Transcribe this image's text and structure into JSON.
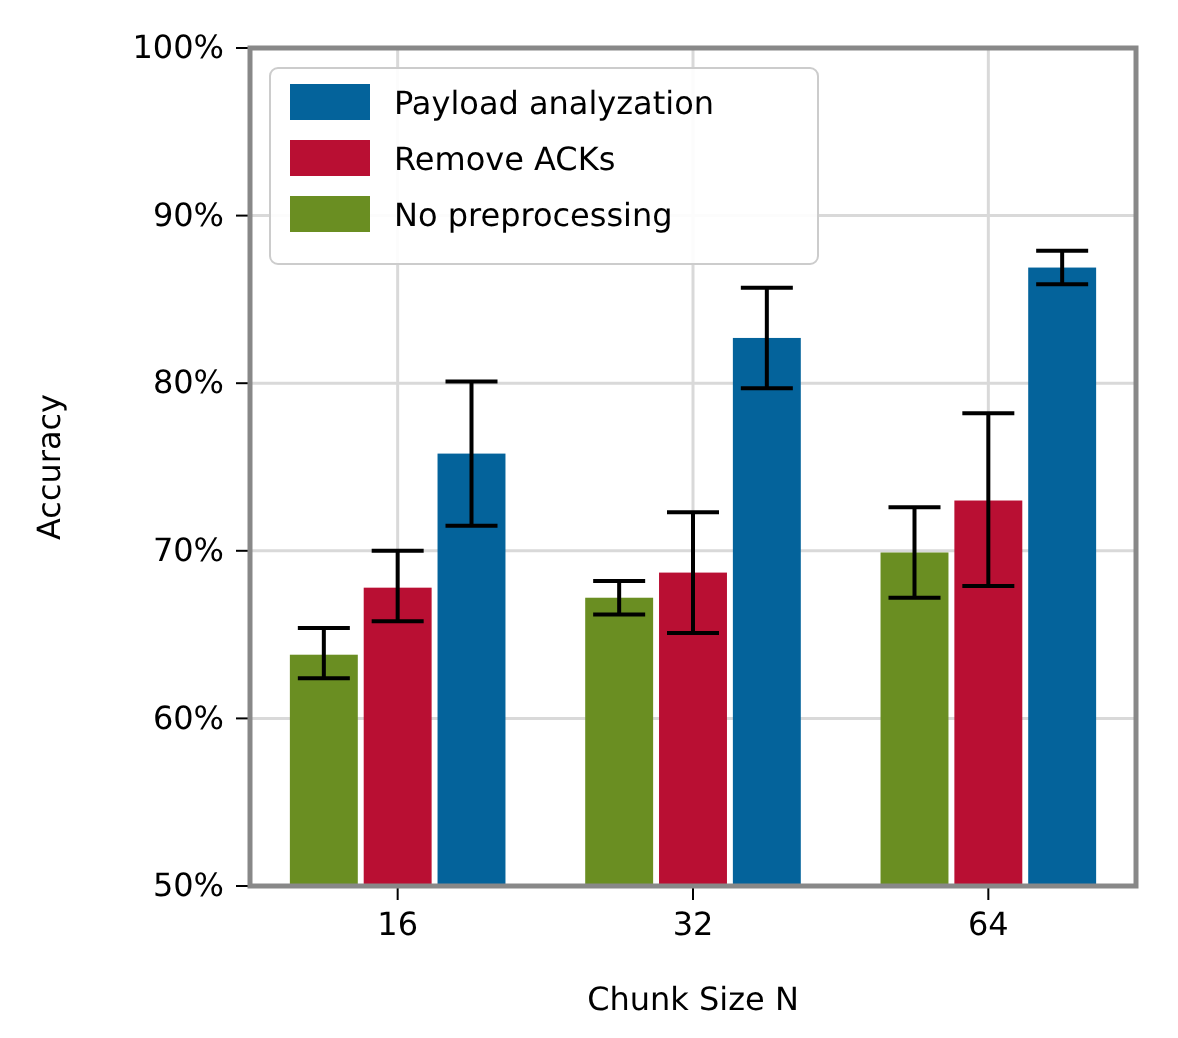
{
  "chart_data": {
    "type": "bar",
    "xlabel": "Chunk Size N",
    "ylabel": "Accuracy",
    "categories": [
      "16",
      "32",
      "64"
    ],
    "series": [
      {
        "name": "No preprocessing",
        "color": "#6a8e22",
        "values": [
          63.8,
          67.2,
          69.9
        ],
        "errors": [
          [
            62.4,
            65.4
          ],
          [
            66.2,
            68.2
          ],
          [
            67.2,
            72.6
          ]
        ]
      },
      {
        "name": "Remove ACKs",
        "color": "#b90f33",
        "values": [
          67.8,
          68.7,
          73.0
        ],
        "errors": [
          [
            65.8,
            70.0
          ],
          [
            65.1,
            72.3
          ],
          [
            67.9,
            78.2
          ]
        ]
      },
      {
        "name": "Payload analyzation",
        "color": "#04639b",
        "values": [
          75.8,
          82.7,
          86.9
        ],
        "errors": [
          [
            71.5,
            80.1
          ],
          [
            79.7,
            85.7
          ],
          [
            85.9,
            87.9
          ]
        ]
      }
    ],
    "ylim": [
      50,
      100
    ],
    "yticks": [
      {
        "value": 50,
        "label": "50%"
      },
      {
        "value": 60,
        "label": "60%"
      },
      {
        "value": 70,
        "label": "70%"
      },
      {
        "value": 80,
        "label": "80%"
      },
      {
        "value": 90,
        "label": "90%"
      },
      {
        "value": 100,
        "label": "100%"
      }
    ],
    "grid": true,
    "legend": "top left"
  }
}
